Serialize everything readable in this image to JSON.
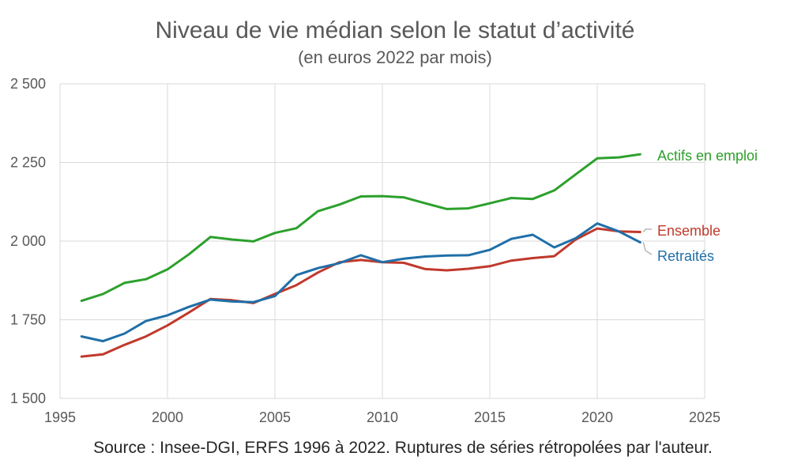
{
  "chart_data": {
    "type": "line",
    "title": "Niveau de vie médian selon le statut d’activité",
    "subtitle": "(en euros 2022 par mois)",
    "xlabel": "",
    "ylabel": "",
    "xlim": [
      1995,
      2025
    ],
    "ylim": [
      1500,
      2500
    ],
    "x_ticks": [
      1995,
      2000,
      2005,
      2010,
      2015,
      2020,
      2025
    ],
    "x_tick_labels": [
      "1995",
      "2000",
      "2005",
      "2010",
      "2015",
      "2020",
      "2025"
    ],
    "y_ticks": [
      1500,
      1750,
      2000,
      2250,
      2500
    ],
    "y_tick_labels": [
      "1 500",
      "1 750",
      "2 000",
      "2 250",
      "2 500"
    ],
    "grid": true,
    "legend": "inline labels at right end of lines",
    "x": [
      1996,
      1997,
      1998,
      1999,
      2000,
      2001,
      2002,
      2003,
      2004,
      2005,
      2006,
      2007,
      2008,
      2009,
      2010,
      2011,
      2012,
      2013,
      2014,
      2015,
      2016,
      2017,
      2018,
      2019,
      2020,
      2021,
      2022
    ],
    "series": [
      {
        "name": "Actifs en emploi",
        "color": "#2ca02c",
        "values": [
          1810,
          1832,
          1867,
          1879,
          1910,
          1958,
          2013,
          2005,
          1999,
          2026,
          2041,
          2095,
          2116,
          2142,
          2143,
          2139,
          2120,
          2102,
          2104,
          2120,
          2137,
          2134,
          2161,
          2212,
          2263,
          2266,
          2276
        ]
      },
      {
        "name": "Ensemble",
        "color": "#c0392b",
        "values": [
          1633,
          1640,
          1670,
          1697,
          1732,
          1773,
          1816,
          1812,
          1803,
          1832,
          1860,
          1900,
          1933,
          1940,
          1933,
          1931,
          1911,
          1907,
          1912,
          1920,
          1938,
          1946,
          1952,
          2005,
          2040,
          2031,
          2029
        ]
      },
      {
        "name": "Retraités",
        "color": "#1f6fa8",
        "values": [
          1697,
          1682,
          1706,
          1746,
          1764,
          1791,
          1814,
          1808,
          1806,
          1825,
          1892,
          1914,
          1930,
          1955,
          1933,
          1944,
          1951,
          1954,
          1955,
          1972,
          2007,
          2020,
          1980,
          2009,
          2056,
          2031,
          1996
        ]
      }
    ],
    "source": "Source : Insee-DGI, ERFS 1996 à 2022. Ruptures de séries rétropolées par l'auteur."
  }
}
